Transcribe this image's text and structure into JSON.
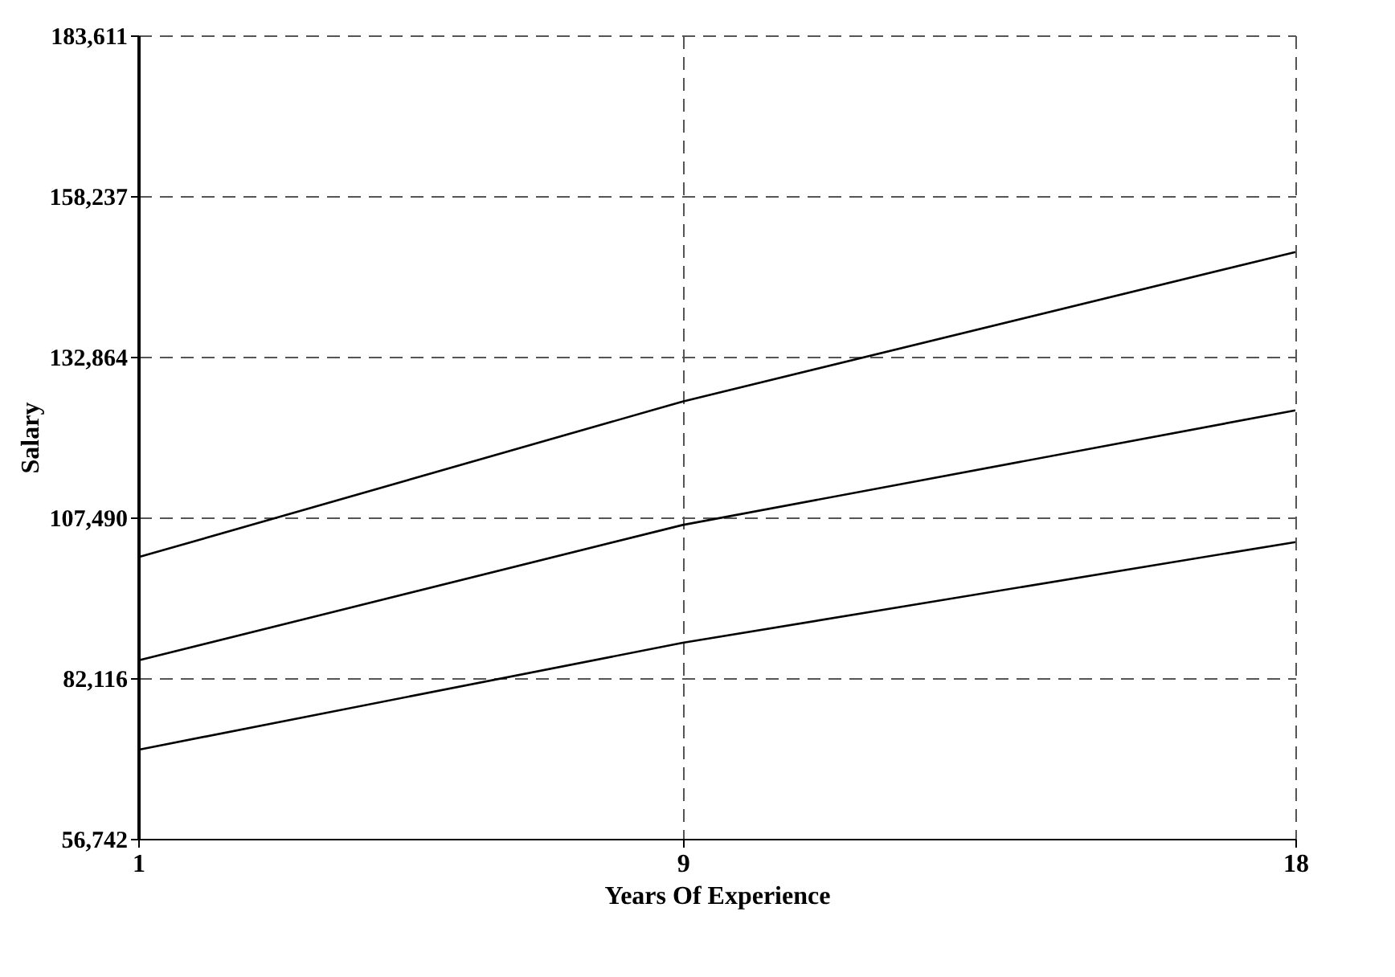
{
  "chart_data": {
    "type": "line",
    "xlabel": "Years Of Experience",
    "ylabel": "Salary",
    "x": [
      1,
      9,
      18
    ],
    "series": [
      {
        "color": "#000000",
        "values": [
          101200,
          125800,
          149400
        ]
      },
      {
        "color": "#000000",
        "values": [
          84900,
          106300,
          124400
        ]
      },
      {
        "color": "#000000",
        "values": [
          70800,
          87700,
          103600
        ]
      }
    ],
    "xlim": [
      1,
      18
    ],
    "xticks": [
      1,
      9,
      18
    ],
    "ylim": [
      56742,
      183611
    ],
    "yticks": [
      {
        "value": 56742,
        "label": "56,742"
      },
      {
        "value": 82116,
        "label": "82,116"
      },
      {
        "value": 107490,
        "label": "107,490"
      },
      {
        "value": 132864,
        "label": "132,864"
      },
      {
        "value": 158237,
        "label": "158,237"
      },
      {
        "value": 183611,
        "label": "183,611"
      }
    ],
    "grid": true,
    "marker": "none",
    "line_style": "solid"
  }
}
